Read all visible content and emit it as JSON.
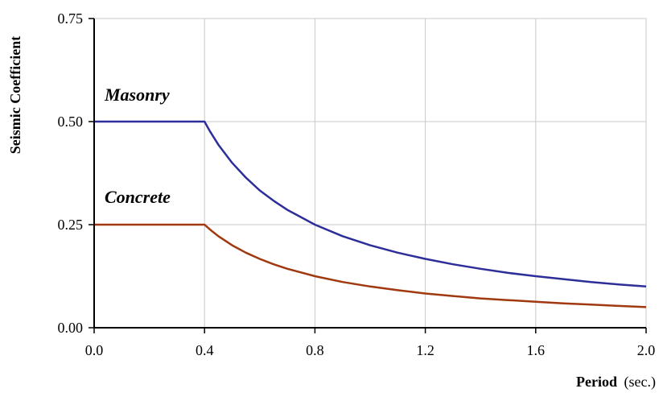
{
  "chart_data": {
    "type": "line",
    "xlabel": "Period",
    "xlabel_unit": "(sec.)",
    "ylabel": "Seismic Coefficient",
    "xlim": [
      0,
      2.0
    ],
    "ylim": [
      0,
      0.75
    ],
    "x_ticks": [
      "0.0",
      "0.4",
      "0.8",
      "1.2",
      "1.6",
      "2.0"
    ],
    "y_ticks": [
      "0.00",
      "0.25",
      "0.50",
      "0.75"
    ],
    "grid": true,
    "series": [
      {
        "name": "Masonry",
        "color": "#2e2e9a",
        "x": [
          0.0,
          0.4,
          0.42,
          0.45,
          0.5,
          0.55,
          0.6,
          0.65,
          0.7,
          0.8,
          0.9,
          1.0,
          1.1,
          1.2,
          1.3,
          1.4,
          1.5,
          1.6,
          1.7,
          1.8,
          1.9,
          2.0
        ],
        "y": [
          0.5,
          0.5,
          0.476,
          0.444,
          0.4,
          0.364,
          0.333,
          0.308,
          0.286,
          0.25,
          0.222,
          0.2,
          0.182,
          0.167,
          0.154,
          0.143,
          0.133,
          0.125,
          0.118,
          0.111,
          0.105,
          0.1
        ]
      },
      {
        "name": "Concrete",
        "color": "#a0390f",
        "x": [
          0.0,
          0.4,
          0.42,
          0.45,
          0.5,
          0.55,
          0.6,
          0.65,
          0.7,
          0.8,
          0.9,
          1.0,
          1.1,
          1.2,
          1.3,
          1.4,
          1.5,
          1.6,
          1.7,
          1.8,
          1.9,
          2.0
        ],
        "y": [
          0.25,
          0.25,
          0.238,
          0.222,
          0.2,
          0.182,
          0.167,
          0.154,
          0.143,
          0.125,
          0.111,
          0.1,
          0.091,
          0.083,
          0.077,
          0.071,
          0.067,
          0.063,
          0.059,
          0.056,
          0.053,
          0.05
        ]
      }
    ]
  }
}
